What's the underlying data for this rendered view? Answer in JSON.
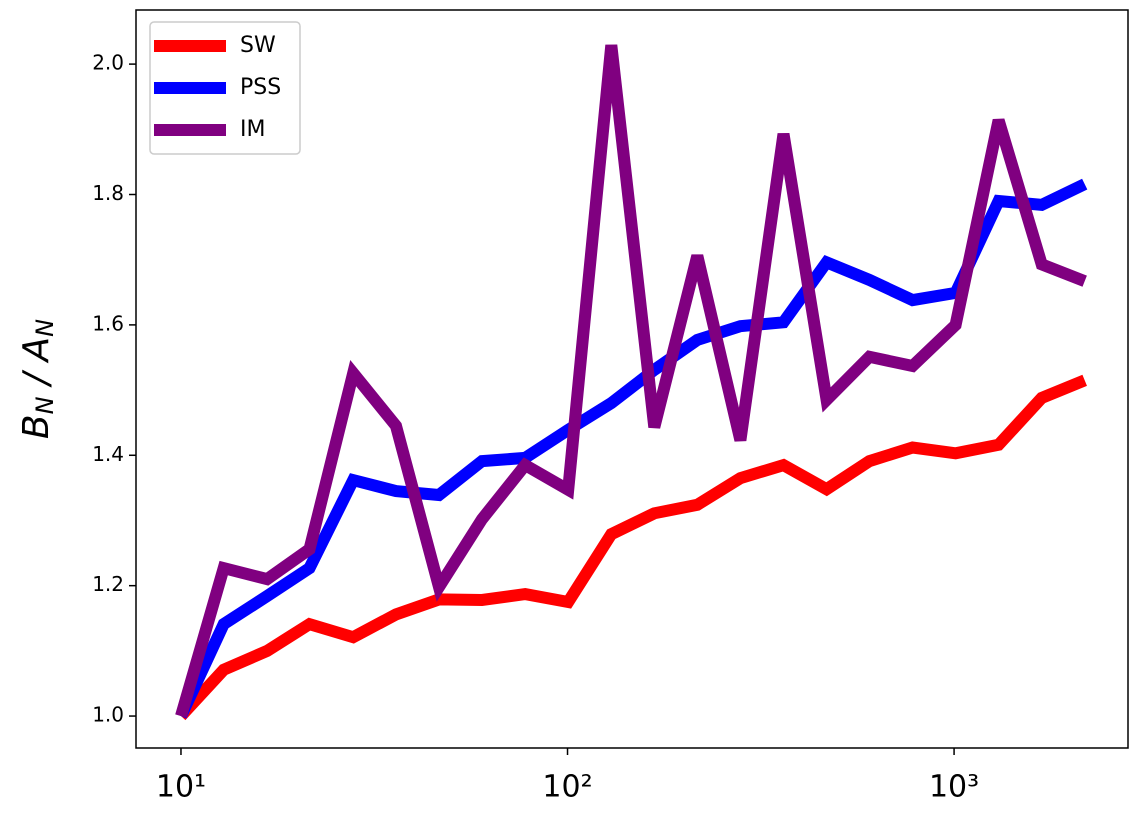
{
  "chart_data": {
    "type": "line",
    "ylabel": "B_N / A_N",
    "xscale": "log",
    "legend": "upper left",
    "x": [
      10,
      12.9,
      16.7,
      21.5,
      27.9,
      36.0,
      46.5,
      60.1,
      77.7,
      100.4,
      129.8,
      167.7,
      216.7,
      280,
      362,
      468,
      604,
      781,
      1009,
      1304,
      1685,
      2177
    ],
    "series": [
      {
        "name": "SW",
        "color": "#ff0000",
        "values": [
          1.0,
          1.071,
          1.1,
          1.141,
          1.121,
          1.156,
          1.179,
          1.178,
          1.187,
          1.175,
          1.279,
          1.311,
          1.324,
          1.365,
          1.385,
          1.348,
          1.391,
          1.412,
          1.403,
          1.416,
          1.488,
          1.515
        ]
      },
      {
        "name": "PSS",
        "color": "#0000ff",
        "values": [
          1.0,
          1.141,
          1.184,
          1.227,
          1.362,
          1.345,
          1.339,
          1.391,
          1.396,
          1.439,
          1.48,
          1.531,
          1.577,
          1.598,
          1.604,
          1.696,
          1.669,
          1.638,
          1.649,
          1.79,
          1.784,
          1.816
        ]
      },
      {
        "name": "IM",
        "color": "#800080",
        "values": [
          1.0,
          1.227,
          1.21,
          1.256,
          1.526,
          1.445,
          1.198,
          1.302,
          1.385,
          1.347,
          2.029,
          1.443,
          1.706,
          1.423,
          1.893,
          1.485,
          1.551,
          1.537,
          1.6,
          1.914,
          1.693,
          1.667
        ]
      }
    ],
    "xlim": [
      7.65,
      2818
    ],
    "xticks": [
      {
        "value": 10,
        "label": "10¹"
      },
      {
        "value": 100,
        "label": "10²"
      },
      {
        "value": 1000,
        "label": "10³"
      }
    ],
    "ylim": [
      0.951,
      2.083
    ],
    "yticks": [
      {
        "value": 1,
        "label": "1.0"
      },
      1.2,
      1.4,
      1.6,
      1.8,
      {
        "value": 2,
        "label": "2.0"
      }
    ]
  }
}
